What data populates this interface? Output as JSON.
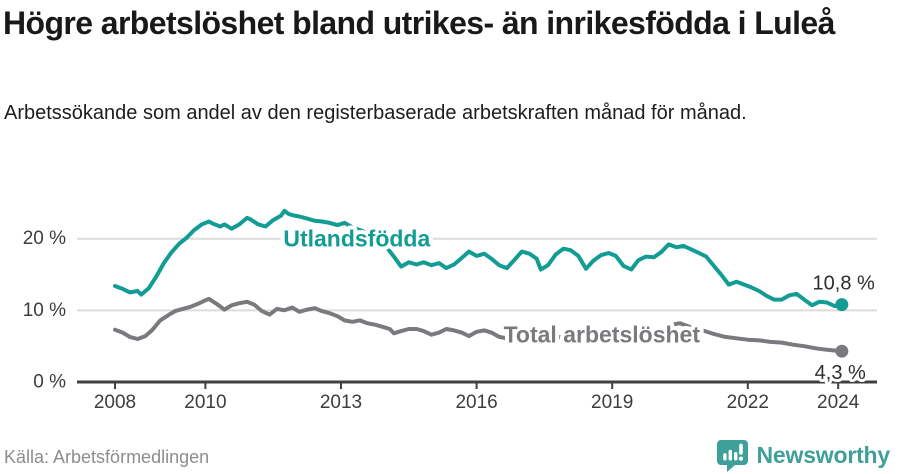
{
  "header": {
    "title": "Högre arbetslöshet bland utrikes- än inrikesfödda i Luleå",
    "subtitle": "Arbetssökande som andel av den registerbaserade arbetskraften månad för månad."
  },
  "footer": {
    "source": "Källa: Arbetsförmedlingen",
    "brand": "Newsworthy",
    "brand_color": "#3fa099"
  },
  "chart_data": {
    "type": "line",
    "title": "Högre arbetslöshet bland utrikes- än inrikesfödda i Luleå",
    "xlabel": "",
    "ylabel": "Arbetssökande som andel av den registerbaserade arbetskraften",
    "xlim": [
      2007.2,
      2024.9
    ],
    "ylim": [
      0,
      26.5
    ],
    "grid": "horizontal",
    "legend_position": "inline-labels",
    "x_ticks": [
      {
        "year": 2008,
        "label": "2008"
      },
      {
        "year": 2010,
        "label": "2010"
      },
      {
        "year": 2013,
        "label": "2013"
      },
      {
        "year": 2016,
        "label": "2016"
      },
      {
        "year": 2019,
        "label": "2019"
      },
      {
        "year": 2022,
        "label": "2022"
      },
      {
        "year": 2024,
        "label": "2024"
      }
    ],
    "y_ticks": [
      {
        "value": 0,
        "label": "0 %"
      },
      {
        "value": 10,
        "label": "10 %"
      },
      {
        "value": 20,
        "label": "20 %"
      }
    ],
    "series": [
      {
        "name": "Utlandsfödda",
        "color": "#129c94",
        "end_label": "10,8 %",
        "end_value": 10.8,
        "label_at": {
          "year": 2013.35,
          "value": 20.0
        },
        "points": [
          [
            2008.0,
            13.4
          ],
          [
            2008.17,
            13.0
          ],
          [
            2008.33,
            12.5
          ],
          [
            2008.5,
            12.7
          ],
          [
            2008.58,
            12.2
          ],
          [
            2008.75,
            13.1
          ],
          [
            2008.92,
            14.8
          ],
          [
            2009.08,
            16.6
          ],
          [
            2009.25,
            18.1
          ],
          [
            2009.42,
            19.3
          ],
          [
            2009.58,
            20.1
          ],
          [
            2009.75,
            21.2
          ],
          [
            2009.92,
            22.0
          ],
          [
            2010.08,
            22.4
          ],
          [
            2010.17,
            22.1
          ],
          [
            2010.33,
            21.7
          ],
          [
            2010.42,
            22.0
          ],
          [
            2010.58,
            21.4
          ],
          [
            2010.75,
            22.0
          ],
          [
            2010.92,
            22.9
          ],
          [
            2011.0,
            22.7
          ],
          [
            2011.17,
            22.0
          ],
          [
            2011.33,
            21.7
          ],
          [
            2011.5,
            22.6
          ],
          [
            2011.67,
            23.2
          ],
          [
            2011.75,
            23.9
          ],
          [
            2011.83,
            23.5
          ],
          [
            2011.92,
            23.3
          ],
          [
            2012.08,
            23.1
          ],
          [
            2012.25,
            22.8
          ],
          [
            2012.42,
            22.5
          ],
          [
            2012.58,
            22.4
          ],
          [
            2012.75,
            22.2
          ],
          [
            2012.92,
            21.9
          ],
          [
            2013.08,
            22.2
          ],
          [
            2013.25,
            21.6
          ],
          [
            2013.5,
            21.0
          ],
          [
            2013.75,
            19.9
          ],
          [
            2014.0,
            18.9
          ],
          [
            2014.17,
            17.5
          ],
          [
            2014.33,
            16.1
          ],
          [
            2014.5,
            16.7
          ],
          [
            2014.67,
            16.4
          ],
          [
            2014.83,
            16.7
          ],
          [
            2015.0,
            16.3
          ],
          [
            2015.17,
            16.6
          ],
          [
            2015.33,
            15.9
          ],
          [
            2015.5,
            16.4
          ],
          [
            2015.67,
            17.3
          ],
          [
            2015.83,
            18.2
          ],
          [
            2016.0,
            17.6
          ],
          [
            2016.17,
            17.9
          ],
          [
            2016.33,
            17.2
          ],
          [
            2016.5,
            16.3
          ],
          [
            2016.67,
            15.9
          ],
          [
            2016.83,
            17.0
          ],
          [
            2017.0,
            18.2
          ],
          [
            2017.17,
            17.9
          ],
          [
            2017.33,
            17.2
          ],
          [
            2017.42,
            15.7
          ],
          [
            2017.58,
            16.3
          ],
          [
            2017.75,
            17.8
          ],
          [
            2017.92,
            18.6
          ],
          [
            2018.08,
            18.4
          ],
          [
            2018.25,
            17.6
          ],
          [
            2018.42,
            15.8
          ],
          [
            2018.58,
            16.9
          ],
          [
            2018.75,
            17.7
          ],
          [
            2018.92,
            18.0
          ],
          [
            2019.08,
            17.6
          ],
          [
            2019.25,
            16.2
          ],
          [
            2019.42,
            15.7
          ],
          [
            2019.58,
            17.0
          ],
          [
            2019.75,
            17.5
          ],
          [
            2019.92,
            17.4
          ],
          [
            2020.08,
            18.1
          ],
          [
            2020.25,
            19.2
          ],
          [
            2020.42,
            18.8
          ],
          [
            2020.58,
            19.0
          ],
          [
            2020.75,
            18.5
          ],
          [
            2020.92,
            18.0
          ],
          [
            2021.08,
            17.5
          ],
          [
            2021.25,
            16.2
          ],
          [
            2021.42,
            14.9
          ],
          [
            2021.58,
            13.6
          ],
          [
            2021.75,
            14.0
          ],
          [
            2021.92,
            13.6
          ],
          [
            2022.08,
            13.2
          ],
          [
            2022.25,
            12.7
          ],
          [
            2022.42,
            12.0
          ],
          [
            2022.58,
            11.5
          ],
          [
            2022.75,
            11.5
          ],
          [
            2022.92,
            12.1
          ],
          [
            2023.08,
            12.3
          ],
          [
            2023.25,
            11.5
          ],
          [
            2023.42,
            10.7
          ],
          [
            2023.58,
            11.2
          ],
          [
            2023.75,
            11.1
          ],
          [
            2023.92,
            10.6
          ],
          [
            2024.08,
            10.8
          ]
        ]
      },
      {
        "name": "Total arbetslöshet",
        "color": "#7a7a7e",
        "end_label": "4,3 %",
        "end_value": 4.3,
        "label_at": {
          "year": 2018.77,
          "value": 6.6
        },
        "points": [
          [
            2008.0,
            7.3
          ],
          [
            2008.17,
            6.9
          ],
          [
            2008.33,
            6.3
          ],
          [
            2008.5,
            6.0
          ],
          [
            2008.67,
            6.4
          ],
          [
            2008.83,
            7.3
          ],
          [
            2009.0,
            8.6
          ],
          [
            2009.17,
            9.3
          ],
          [
            2009.33,
            9.9
          ],
          [
            2009.5,
            10.2
          ],
          [
            2009.67,
            10.5
          ],
          [
            2009.83,
            10.9
          ],
          [
            2010.0,
            11.4
          ],
          [
            2010.08,
            11.6
          ],
          [
            2010.25,
            10.9
          ],
          [
            2010.42,
            10.1
          ],
          [
            2010.58,
            10.7
          ],
          [
            2010.75,
            11.0
          ],
          [
            2010.92,
            11.2
          ],
          [
            2011.08,
            10.8
          ],
          [
            2011.25,
            9.9
          ],
          [
            2011.42,
            9.4
          ],
          [
            2011.58,
            10.2
          ],
          [
            2011.75,
            10.0
          ],
          [
            2011.92,
            10.4
          ],
          [
            2012.08,
            9.8
          ],
          [
            2012.25,
            10.1
          ],
          [
            2012.42,
            10.3
          ],
          [
            2012.58,
            9.9
          ],
          [
            2012.75,
            9.6
          ],
          [
            2012.92,
            9.2
          ],
          [
            2013.08,
            8.6
          ],
          [
            2013.25,
            8.4
          ],
          [
            2013.42,
            8.6
          ],
          [
            2013.58,
            8.2
          ],
          [
            2013.75,
            8.0
          ],
          [
            2013.92,
            7.7
          ],
          [
            2014.08,
            7.4
          ],
          [
            2014.17,
            6.8
          ],
          [
            2014.33,
            7.1
          ],
          [
            2014.5,
            7.4
          ],
          [
            2014.67,
            7.4
          ],
          [
            2014.83,
            7.1
          ],
          [
            2015.0,
            6.6
          ],
          [
            2015.17,
            6.9
          ],
          [
            2015.33,
            7.4
          ],
          [
            2015.5,
            7.2
          ],
          [
            2015.67,
            6.9
          ],
          [
            2015.83,
            6.4
          ],
          [
            2016.0,
            7.0
          ],
          [
            2016.17,
            7.2
          ],
          [
            2016.33,
            6.9
          ],
          [
            2016.5,
            6.3
          ],
          [
            2016.67,
            6.1
          ],
          [
            2016.83,
            6.4
          ],
          [
            2017.0,
            6.6
          ],
          [
            2017.25,
            6.4
          ],
          [
            2017.5,
            6.1
          ],
          [
            2017.75,
            6.3
          ],
          [
            2018.0,
            6.2
          ],
          [
            2018.25,
            5.9
          ],
          [
            2018.5,
            5.7
          ],
          [
            2018.75,
            5.9
          ],
          [
            2019.0,
            6.0
          ],
          [
            2019.25,
            5.8
          ],
          [
            2019.5,
            5.9
          ],
          [
            2019.75,
            6.1
          ],
          [
            2020.0,
            6.5
          ],
          [
            2020.25,
            7.9
          ],
          [
            2020.5,
            8.2
          ],
          [
            2020.75,
            7.6
          ],
          [
            2021.0,
            7.2
          ],
          [
            2021.25,
            6.7
          ],
          [
            2021.5,
            6.3
          ],
          [
            2021.75,
            6.1
          ],
          [
            2022.0,
            5.9
          ],
          [
            2022.25,
            5.8
          ],
          [
            2022.5,
            5.6
          ],
          [
            2022.75,
            5.5
          ],
          [
            2023.0,
            5.2
          ],
          [
            2023.25,
            5.0
          ],
          [
            2023.5,
            4.7
          ],
          [
            2023.75,
            4.5
          ],
          [
            2023.92,
            4.4
          ],
          [
            2024.08,
            4.3
          ]
        ]
      }
    ]
  }
}
